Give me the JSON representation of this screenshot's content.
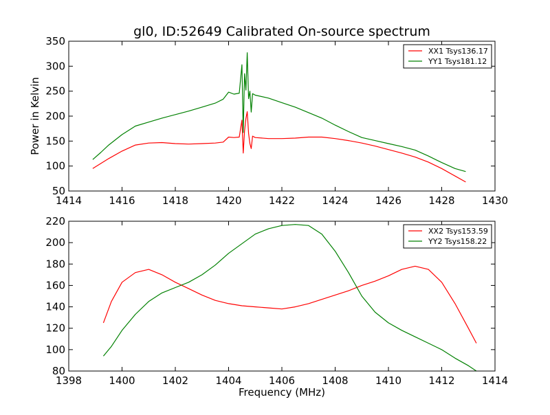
{
  "chart_data": [
    {
      "type": "line",
      "title": "gl0, ID:52649 Calibrated On-source spectrum",
      "xlabel": "",
      "ylabel": "Power in Kelvin",
      "xlim": [
        1414,
        1430
      ],
      "ylim": [
        50,
        350
      ],
      "xticks": [
        "1414",
        "1416",
        "1418",
        "1420",
        "1422",
        "1424",
        "1426",
        "1428",
        "1430"
      ],
      "yticks": [
        "50",
        "100",
        "150",
        "200",
        "250",
        "300",
        "350"
      ],
      "grid": false,
      "legend": "top-right",
      "series": [
        {
          "name": "XX1 Tsys136.17",
          "color": "#ff0000",
          "x": [
            1414.9,
            1415.2,
            1415.5,
            1416.0,
            1416.5,
            1417.0,
            1417.5,
            1418.0,
            1418.5,
            1419.0,
            1419.5,
            1419.8,
            1420.0,
            1420.2,
            1420.4,
            1420.5,
            1420.55,
            1420.6,
            1420.65,
            1420.7,
            1420.75,
            1420.8,
            1420.85,
            1420.9,
            1421.0,
            1421.5,
            1422.0,
            1422.5,
            1423.0,
            1423.5,
            1424.0,
            1424.5,
            1425.0,
            1425.5,
            1426.0,
            1426.5,
            1427.0,
            1427.5,
            1428.0,
            1428.5,
            1428.9
          ],
          "y": [
            95,
            105,
            115,
            130,
            142,
            146,
            147,
            145,
            144,
            145,
            146,
            148,
            158,
            157,
            158,
            192,
            126,
            170,
            195,
            209,
            165,
            145,
            135,
            160,
            157,
            155,
            155,
            156,
            158,
            158,
            155,
            151,
            146,
            140,
            133,
            126,
            118,
            108,
            95,
            80,
            68
          ]
        },
        {
          "name": "YY1 Tsys181.12",
          "color": "#008000",
          "x": [
            1414.9,
            1415.2,
            1415.5,
            1416.0,
            1416.5,
            1417.0,
            1417.5,
            1418.0,
            1418.5,
            1419.0,
            1419.5,
            1419.8,
            1420.0,
            1420.2,
            1420.4,
            1420.5,
            1420.55,
            1420.6,
            1420.65,
            1420.7,
            1420.75,
            1420.8,
            1420.85,
            1420.9,
            1421.0,
            1421.5,
            1422.0,
            1422.5,
            1423.0,
            1423.5,
            1424.0,
            1424.5,
            1425.0,
            1425.5,
            1426.0,
            1426.5,
            1427.0,
            1427.5,
            1428.0,
            1428.5,
            1428.9
          ],
          "y": [
            113,
            127,
            142,
            163,
            180,
            188,
            196,
            203,
            210,
            218,
            226,
            234,
            248,
            244,
            246,
            303,
            167,
            285,
            252,
            327,
            235,
            250,
            208,
            245,
            242,
            236,
            227,
            218,
            207,
            196,
            182,
            169,
            157,
            151,
            145,
            139,
            132,
            120,
            107,
            95,
            89
          ]
        }
      ]
    },
    {
      "type": "line",
      "title": "",
      "xlabel": "Frequency (MHz)",
      "ylabel": "",
      "xlim": [
        1398,
        1414
      ],
      "ylim": [
        80,
        220
      ],
      "xticks": [
        "1398",
        "1400",
        "1402",
        "1404",
        "1406",
        "1408",
        "1410",
        "1412",
        "1414"
      ],
      "yticks": [
        "80",
        "100",
        "120",
        "140",
        "160",
        "180",
        "200",
        "220"
      ],
      "grid": false,
      "legend": "top-right",
      "series": [
        {
          "name": "XX2 Tsys153.59",
          "color": "#ff0000",
          "x": [
            1399.3,
            1399.6,
            1400.0,
            1400.5,
            1401.0,
            1401.5,
            1402.0,
            1402.5,
            1403.0,
            1403.5,
            1404.0,
            1404.5,
            1405.0,
            1405.5,
            1406.0,
            1406.5,
            1407.0,
            1407.5,
            1408.0,
            1408.5,
            1409.0,
            1409.5,
            1410.0,
            1410.5,
            1411.0,
            1411.5,
            1412.0,
            1412.5,
            1413.0,
            1413.3
          ],
          "y": [
            125,
            145,
            163,
            172,
            175,
            170,
            163,
            157,
            151,
            146,
            143,
            141,
            140,
            139,
            138,
            140,
            143,
            147,
            151,
            155,
            160,
            164,
            169,
            175,
            178,
            175,
            163,
            143,
            120,
            106
          ]
        },
        {
          "name": "YY2 Tsys158.22",
          "color": "#008000",
          "x": [
            1399.3,
            1399.6,
            1400.0,
            1400.5,
            1401.0,
            1401.5,
            1402.0,
            1402.5,
            1403.0,
            1403.5,
            1404.0,
            1404.5,
            1405.0,
            1405.5,
            1406.0,
            1406.5,
            1407.0,
            1407.5,
            1408.0,
            1408.5,
            1409.0,
            1409.5,
            1410.0,
            1410.5,
            1411.0,
            1411.5,
            1412.0,
            1412.5,
            1413.0,
            1413.3
          ],
          "y": [
            94,
            103,
            118,
            133,
            145,
            153,
            158,
            163,
            170,
            179,
            190,
            199,
            208,
            213,
            216,
            217,
            216,
            208,
            192,
            172,
            150,
            135,
            125,
            118,
            112,
            106,
            100,
            92,
            85,
            80
          ]
        }
      ]
    }
  ]
}
